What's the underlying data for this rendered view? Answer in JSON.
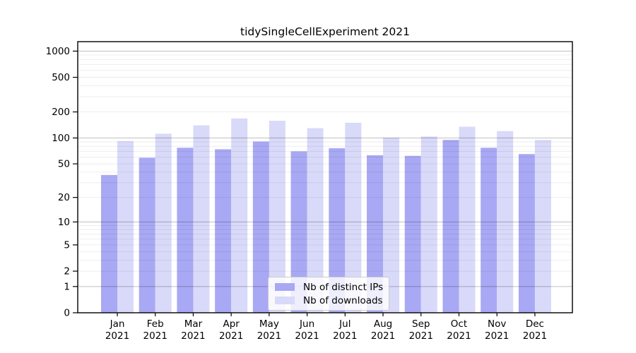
{
  "chart_data": {
    "type": "bar",
    "title": "tidySingleCellExperiment 2021",
    "categories": [
      "Jan",
      "Feb",
      "Mar",
      "Apr",
      "May",
      "Jun",
      "Jul",
      "Aug",
      "Sep",
      "Oct",
      "Nov",
      "Dec"
    ],
    "category_year": "2021",
    "series": [
      {
        "name": "Nb of distinct IPs",
        "color": "#a8a8f4",
        "values": [
          37,
          59,
          77,
          74,
          91,
          70,
          76,
          63,
          62,
          95,
          77,
          65
        ]
      },
      {
        "name": "Nb of downloads",
        "color": "#d9d9f9",
        "values": [
          92,
          112,
          140,
          168,
          158,
          130,
          150,
          101,
          104,
          135,
          120,
          95
        ]
      }
    ],
    "y_ticks": [
      0,
      1,
      2,
      5,
      10,
      20,
      50,
      100,
      200,
      500,
      1000
    ],
    "y_scale": "log1p",
    "ylim": [
      0,
      1300
    ],
    "grid": {
      "major_lines": [
        1,
        10,
        100,
        1000
      ],
      "minor": true
    },
    "legend_position": "bottom-center-inside",
    "xlabel": "",
    "ylabel": ""
  },
  "colors": {
    "bar_distinct_ips": "#a8a8f4",
    "bar_downloads": "#d9d9f9",
    "major_grid": "rgba(0,0,0,0.25)",
    "minor_grid": "rgba(0,0,0,0.07)",
    "axis_frame": "#000000"
  }
}
